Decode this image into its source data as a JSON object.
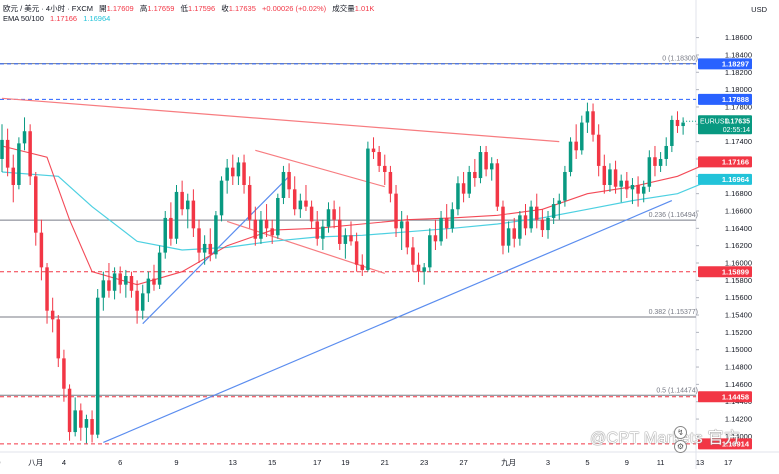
{
  "header": {
    "symbol": "欧元 / 美元 · 4小时 · FXCM",
    "open_label": "開",
    "open": "1.17609",
    "high_label": "高",
    "high": "1.17659",
    "low_label": "低",
    "low": "1.17596",
    "close_label": "收",
    "close": "1.17635",
    "change": "+0.00026 (+0.02%)",
    "volume_label": "成交量",
    "volume": "1.01K",
    "ema_label": "EMA 50/100",
    "ema50": "1.17166",
    "ema100": "1.16964"
  },
  "currency": "USD",
  "watermark": "@CPT Markets 官方",
  "colors": {
    "up": "#089981",
    "down": "#f23645",
    "ema50": "#f23645",
    "ema100": "#4dd0e1",
    "trend_red": "#f77c80",
    "trend_blue": "#5b8def",
    "blue_label": "#2962ff",
    "red_label": "#f23645"
  },
  "chart_data": {
    "type": "candlestick",
    "symbol": "EURUSD",
    "timeframe": "4H",
    "y_range": [
      1.1382,
      1.1878
    ],
    "y_ticks": [
      "1.18600",
      "1.18400",
      "1.18200",
      "1.18000",
      "1.17800",
      "1.17600",
      "1.17400",
      "1.17200",
      "1.17000",
      "1.16800",
      "1.16600",
      "1.16400",
      "1.16200",
      "1.16000",
      "1.15800",
      "1.15600",
      "1.15400",
      "1.15200",
      "1.15000",
      "1.14800",
      "1.14600",
      "1.14400",
      "1.14200",
      "1.14000"
    ],
    "x_ticks": [
      "29",
      "八月",
      "4",
      "6",
      "9",
      "13",
      "15",
      "17",
      "19",
      "21",
      "23",
      "27",
      "九月",
      "3",
      "5",
      "9",
      "11",
      "13",
      "17"
    ],
    "candles": [
      [
        1.172,
        1.176,
        1.1705,
        1.1742
      ],
      [
        1.1742,
        1.1755,
        1.17,
        1.171
      ],
      [
        1.171,
        1.1725,
        1.167,
        1.169
      ],
      [
        1.169,
        1.1745,
        1.1685,
        1.1738
      ],
      [
        1.1738,
        1.1768,
        1.173,
        1.1752
      ],
      [
        1.1752,
        1.176,
        1.169,
        1.17
      ],
      [
        1.17,
        1.1705,
        1.162,
        1.1635
      ],
      [
        1.1635,
        1.165,
        1.158,
        1.1595
      ],
      [
        1.1595,
        1.16,
        1.153,
        1.1545
      ],
      [
        1.1545,
        1.156,
        1.152,
        1.1535
      ],
      [
        1.1535,
        1.154,
        1.148,
        1.149
      ],
      [
        1.149,
        1.15,
        1.144,
        1.1455
      ],
      [
        1.1455,
        1.146,
        1.1395,
        1.1405
      ],
      [
        1.1405,
        1.1445,
        1.14,
        1.143
      ],
      [
        1.143,
        1.1438,
        1.1395,
        1.141
      ],
      [
        1.141,
        1.1425,
        1.1392,
        1.142
      ],
      [
        1.142,
        1.143,
        1.1393,
        1.1402
      ],
      [
        1.1402,
        1.157,
        1.1398,
        1.156
      ],
      [
        1.156,
        1.159,
        1.1545,
        1.158
      ],
      [
        1.158,
        1.16,
        1.156,
        1.1568
      ],
      [
        1.1568,
        1.1595,
        1.1558,
        1.1588
      ],
      [
        1.1588,
        1.1596,
        1.1565,
        1.1575
      ],
      [
        1.1575,
        1.1592,
        1.156,
        1.1585
      ],
      [
        1.1585,
        1.159,
        1.156,
        1.1568
      ],
      [
        1.1568,
        1.158,
        1.153,
        1.1545
      ],
      [
        1.1545,
        1.1575,
        1.1535,
        1.1565
      ],
      [
        1.1565,
        1.159,
        1.1555,
        1.1582
      ],
      [
        1.1582,
        1.1598,
        1.1568,
        1.1575
      ],
      [
        1.1575,
        1.162,
        1.157,
        1.1612
      ],
      [
        1.1612,
        1.166,
        1.1605,
        1.1652
      ],
      [
        1.1652,
        1.167,
        1.162,
        1.1628
      ],
      [
        1.1628,
        1.169,
        1.1622,
        1.1682
      ],
      [
        1.1682,
        1.1695,
        1.1655,
        1.1662
      ],
      [
        1.1662,
        1.168,
        1.164,
        1.1672
      ],
      [
        1.1672,
        1.1685,
        1.163,
        1.164
      ],
      [
        1.164,
        1.165,
        1.16,
        1.1612
      ],
      [
        1.1612,
        1.1632,
        1.1598,
        1.1622
      ],
      [
        1.1622,
        1.164,
        1.1602,
        1.161
      ],
      [
        1.161,
        1.166,
        1.1605,
        1.1655
      ],
      [
        1.1655,
        1.17,
        1.1648,
        1.1695
      ],
      [
        1.1695,
        1.172,
        1.168,
        1.171
      ],
      [
        1.171,
        1.1725,
        1.169,
        1.17
      ],
      [
        1.17,
        1.1722,
        1.169,
        1.1716
      ],
      [
        1.1716,
        1.1725,
        1.168,
        1.169
      ],
      [
        1.169,
        1.17,
        1.164,
        1.165
      ],
      [
        1.165,
        1.1665,
        1.162,
        1.1628
      ],
      [
        1.1628,
        1.166,
        1.1622,
        1.165
      ],
      [
        1.165,
        1.1668,
        1.163,
        1.164
      ],
      [
        1.164,
        1.165,
        1.1622,
        1.1632
      ],
      [
        1.1632,
        1.168,
        1.1628,
        1.1675
      ],
      [
        1.1675,
        1.1712,
        1.1668,
        1.1705
      ],
      [
        1.1705,
        1.1715,
        1.1675,
        1.1685
      ],
      [
        1.1685,
        1.17,
        1.1655,
        1.1662
      ],
      [
        1.1662,
        1.168,
        1.1652,
        1.1672
      ],
      [
        1.1672,
        1.169,
        1.166,
        1.1665
      ],
      [
        1.1665,
        1.1672,
        1.164,
        1.1648
      ],
      [
        1.1648,
        1.166,
        1.162,
        1.1628
      ],
      [
        1.1628,
        1.165,
        1.1615,
        1.1642
      ],
      [
        1.1642,
        1.167,
        1.1635,
        1.1662
      ],
      [
        1.1662,
        1.1672,
        1.164,
        1.165
      ],
      [
        1.165,
        1.1665,
        1.1615,
        1.1622
      ],
      [
        1.1622,
        1.164,
        1.1605,
        1.1632
      ],
      [
        1.1632,
        1.1648,
        1.162,
        1.1625
      ],
      [
        1.1625,
        1.1635,
        1.159,
        1.1598
      ],
      [
        1.1598,
        1.161,
        1.1585,
        1.1592
      ],
      [
        1.1592,
        1.174,
        1.159,
        1.1732
      ],
      [
        1.1732,
        1.1745,
        1.172,
        1.1728
      ],
      [
        1.1728,
        1.1735,
        1.1705,
        1.1712
      ],
      [
        1.1712,
        1.1725,
        1.169,
        1.1705
      ],
      [
        1.1705,
        1.1712,
        1.167,
        1.168
      ],
      [
        1.168,
        1.169,
        1.163,
        1.164
      ],
      [
        1.164,
        1.166,
        1.1615,
        1.1648
      ],
      [
        1.1648,
        1.1655,
        1.161,
        1.1618
      ],
      [
        1.1618,
        1.163,
        1.159,
        1.1598
      ],
      [
        1.1598,
        1.1612,
        1.1578,
        1.159
      ],
      [
        1.159,
        1.16,
        1.1575,
        1.1595
      ],
      [
        1.1595,
        1.164,
        1.159,
        1.1632
      ],
      [
        1.1632,
        1.165,
        1.1615,
        1.1625
      ],
      [
        1.1625,
        1.166,
        1.162,
        1.1652
      ],
      [
        1.1652,
        1.1668,
        1.1628,
        1.164
      ],
      [
        1.164,
        1.167,
        1.1635,
        1.1662
      ],
      [
        1.1662,
        1.17,
        1.1655,
        1.1692
      ],
      [
        1.1692,
        1.1705,
        1.167,
        1.168
      ],
      [
        1.168,
        1.1712,
        1.1675,
        1.1705
      ],
      [
        1.1705,
        1.172,
        1.1688,
        1.1698
      ],
      [
        1.1698,
        1.1735,
        1.1692,
        1.1728
      ],
      [
        1.1728,
        1.1735,
        1.17,
        1.1708
      ],
      [
        1.1708,
        1.1722,
        1.1695,
        1.1715
      ],
      [
        1.1715,
        1.172,
        1.166,
        1.1665
      ],
      [
        1.1665,
        1.1672,
        1.161,
        1.162
      ],
      [
        1.162,
        1.1648,
        1.1612,
        1.164
      ],
      [
        1.164,
        1.1652,
        1.1618,
        1.1628
      ],
      [
        1.1628,
        1.166,
        1.162,
        1.1655
      ],
      [
        1.1655,
        1.1668,
        1.1632,
        1.164
      ],
      [
        1.164,
        1.1672,
        1.1635,
        1.1665
      ],
      [
        1.1665,
        1.168,
        1.164,
        1.165
      ],
      [
        1.165,
        1.1662,
        1.163,
        1.1638
      ],
      [
        1.1638,
        1.166,
        1.1628,
        1.1652
      ],
      [
        1.1652,
        1.1675,
        1.1645,
        1.1668
      ],
      [
        1.1668,
        1.168,
        1.165,
        1.1672
      ],
      [
        1.1672,
        1.1712,
        1.1665,
        1.1705
      ],
      [
        1.1705,
        1.1745,
        1.17,
        1.174
      ],
      [
        1.174,
        1.176,
        1.172,
        1.173
      ],
      [
        1.173,
        1.177,
        1.1725,
        1.1762
      ],
      [
        1.1762,
        1.1785,
        1.175,
        1.1775
      ],
      [
        1.1775,
        1.1784,
        1.174,
        1.1748
      ],
      [
        1.1748,
        1.176,
        1.17,
        1.1712
      ],
      [
        1.1712,
        1.1725,
        1.168,
        1.169
      ],
      [
        1.169,
        1.1715,
        1.1682,
        1.1708
      ],
      [
        1.1708,
        1.1718,
        1.168,
        1.1688
      ],
      [
        1.1688,
        1.1702,
        1.167,
        1.1695
      ],
      [
        1.1695,
        1.1705,
        1.1675,
        1.1685
      ],
      [
        1.1685,
        1.1698,
        1.1668,
        1.169
      ],
      [
        1.169,
        1.17,
        1.1665,
        1.168
      ],
      [
        1.168,
        1.1695,
        1.167,
        1.1688
      ],
      [
        1.1688,
        1.173,
        1.1682,
        1.1722
      ],
      [
        1.1722,
        1.1735,
        1.17,
        1.1712
      ],
      [
        1.1712,
        1.1728,
        1.1705,
        1.172
      ],
      [
        1.172,
        1.1745,
        1.1712,
        1.1735
      ],
      [
        1.1735,
        1.177,
        1.1728,
        1.1765
      ],
      [
        1.1765,
        1.1775,
        1.175,
        1.1758
      ],
      [
        1.1758,
        1.1768,
        1.1748,
        1.1762
      ]
    ],
    "ema50": [
      [
        0,
        1.1735
      ],
      [
        8,
        1.1722
      ],
      [
        12,
        1.165
      ],
      [
        16,
        1.159
      ],
      [
        24,
        1.1575
      ],
      [
        32,
        1.159
      ],
      [
        40,
        1.162
      ],
      [
        48,
        1.1638
      ],
      [
        56,
        1.164
      ],
      [
        64,
        1.1645
      ],
      [
        72,
        1.165
      ],
      [
        80,
        1.1652
      ],
      [
        88,
        1.1655
      ],
      [
        96,
        1.1662
      ],
      [
        104,
        1.168
      ],
      [
        112,
        1.1688
      ],
      [
        120,
        1.17
      ],
      [
        126,
        1.1717
      ]
    ],
    "ema100": [
      [
        0,
        1.1705
      ],
      [
        10,
        1.17
      ],
      [
        16,
        1.1665
      ],
      [
        24,
        1.1625
      ],
      [
        32,
        1.1615
      ],
      [
        40,
        1.1618
      ],
      [
        48,
        1.1625
      ],
      [
        56,
        1.163
      ],
      [
        64,
        1.1632
      ],
      [
        72,
        1.1636
      ],
      [
        80,
        1.164
      ],
      [
        88,
        1.1645
      ],
      [
        96,
        1.1652
      ],
      [
        104,
        1.1662
      ],
      [
        112,
        1.1672
      ],
      [
        120,
        1.168
      ],
      [
        126,
        1.1696
      ]
    ],
    "fib_levels": [
      {
        "label": "0 (1.18300)",
        "value": 1.183
      },
      {
        "label": "0.236 (1.16494)",
        "value": 1.16494
      },
      {
        "label": "0.382 (1.15377)",
        "value": 1.15377
      },
      {
        "label": "0.5 (1.14474)",
        "value": 1.14474
      }
    ],
    "price_labels": [
      {
        "text": "1.18297",
        "value": 1.18297,
        "color": "#2962ff"
      },
      {
        "text": "1.17888",
        "value": 1.17888,
        "color": "#2962ff"
      },
      {
        "text": "1.17166",
        "value": 1.17166,
        "color": "#f23645"
      },
      {
        "text": "1.16964",
        "value": 1.16964,
        "color": "#22c3d9"
      },
      {
        "text": "1.15899",
        "value": 1.15899,
        "color": "#f23645"
      },
      {
        "text": "1.14458",
        "value": 1.14458,
        "color": "#f23645"
      },
      {
        "text": "1.13914",
        "value": 1.13914,
        "color": "#f23645"
      }
    ],
    "current_price": {
      "symbol": "EURUSD",
      "price": "1.17635",
      "countdown": "02:55:14",
      "value": 1.17635
    },
    "dashed_lines": [
      {
        "value": 1.18297,
        "color": "#2962ff"
      },
      {
        "value": 1.17888,
        "color": "#2962ff"
      },
      {
        "value": 1.15899,
        "color": "#f23645"
      },
      {
        "value": 1.14458,
        "color": "#f23645"
      },
      {
        "value": 1.13914,
        "color": "#f23645"
      }
    ]
  }
}
